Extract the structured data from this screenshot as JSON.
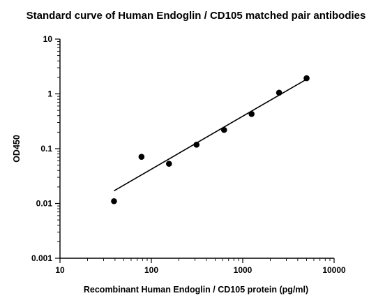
{
  "chart_data": {
    "type": "scatter",
    "title": "Standard curve of Human Endoglin / CD105 matched pair antibodies",
    "xlabel": "Recombinant Human Endoglin / CD105 protein (pg/ml)",
    "ylabel": "OD450",
    "x_scale": "log",
    "y_scale": "log",
    "xlim": [
      10,
      10000
    ],
    "ylim": [
      0.001,
      10
    ],
    "x_ticks": [
      "10",
      "100",
      "1000",
      "10000"
    ],
    "y_ticks": [
      "0.001",
      "0.01",
      "0.1",
      "1",
      "10"
    ],
    "grid": false,
    "points": [
      {
        "x": 39,
        "y": 0.011
      },
      {
        "x": 78,
        "y": 0.071
      },
      {
        "x": 156,
        "y": 0.053
      },
      {
        "x": 312,
        "y": 0.118
      },
      {
        "x": 625,
        "y": 0.22
      },
      {
        "x": 1250,
        "y": 0.43
      },
      {
        "x": 2500,
        "y": 1.05
      },
      {
        "x": 5000,
        "y": 1.93
      }
    ],
    "fit_line": {
      "x": [
        39,
        5000
      ],
      "y": [
        0.017,
        1.85
      ]
    }
  }
}
